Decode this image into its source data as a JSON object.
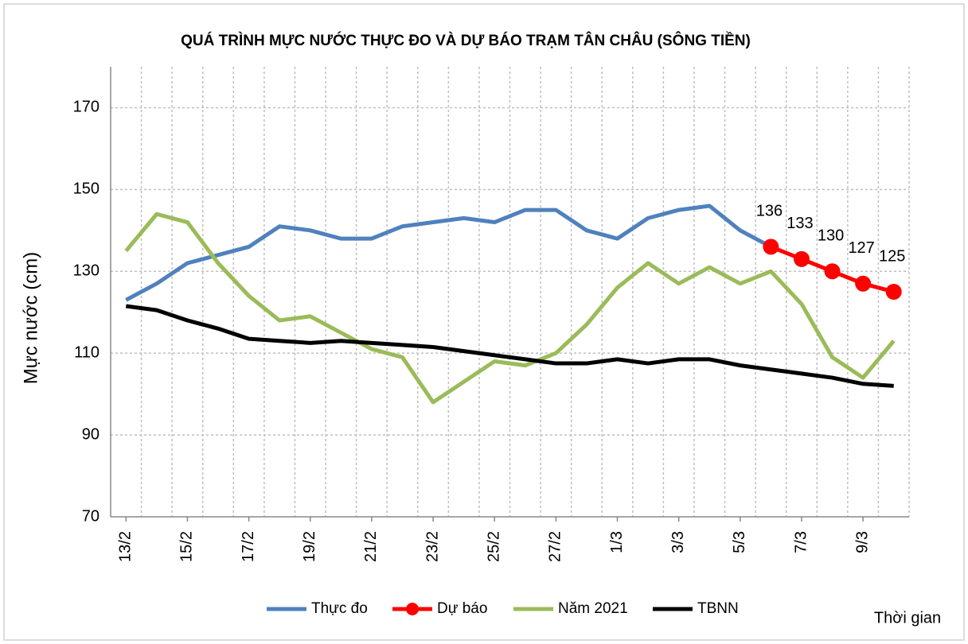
{
  "chart_data": {
    "type": "line",
    "title": "QUÁ TRÌNH MỰC NƯỚC THỰC ĐO VÀ DỰ BÁO TRẠM TÂN CHÂU (SÔNG TIỀN)",
    "y_label": "Mực nước (cm)",
    "x_label": "Thời gian",
    "categories": [
      "13/2",
      null,
      "15/2",
      null,
      "17/2",
      null,
      "19/2",
      null,
      "21/2",
      null,
      "23/2",
      null,
      "25/2",
      null,
      "27/2",
      null,
      "1/3",
      null,
      "3/3",
      null,
      "5/3",
      null,
      "7/3",
      null,
      "9/3",
      null
    ],
    "series": [
      {
        "name": "Thực đo",
        "color": "#4f81bd",
        "values": [
          123,
          127,
          132,
          134,
          136,
          141,
          140,
          138,
          138,
          141,
          142,
          143,
          142,
          145,
          145,
          140,
          138,
          143,
          145,
          146,
          140,
          136,
          null,
          null,
          null,
          null
        ]
      },
      {
        "name": "Dự báo",
        "color": "#ff0000",
        "markers": true,
        "values": [
          null,
          null,
          null,
          null,
          null,
          null,
          null,
          null,
          null,
          null,
          null,
          null,
          null,
          null,
          null,
          null,
          null,
          null,
          null,
          null,
          null,
          136,
          133,
          130,
          127,
          125
        ],
        "data_labels": true
      },
      {
        "name": "Năm 2021",
        "color": "#9bbb59",
        "values": [
          135,
          144,
          142,
          132,
          124,
          118,
          119,
          115,
          111,
          109,
          98,
          103,
          108,
          107,
          110,
          117,
          126,
          132,
          127,
          131,
          127,
          130,
          122,
          109,
          104,
          113
        ]
      },
      {
        "name": "TBNN",
        "color": "#000000",
        "values": [
          121.5,
          120.5,
          118,
          116,
          113.5,
          113,
          112.5,
          113,
          112.5,
          112,
          111.5,
          110.5,
          109.5,
          108.5,
          107.5,
          107.5,
          108.5,
          107.5,
          108.5,
          108.5,
          107,
          106,
          105,
          104,
          102.5,
          102
        ]
      }
    ],
    "ylim": [
      70,
      180
    ],
    "yticks": [
      70,
      90,
      110,
      130,
      150,
      170
    ],
    "grid": true,
    "legend": "bottom"
  }
}
